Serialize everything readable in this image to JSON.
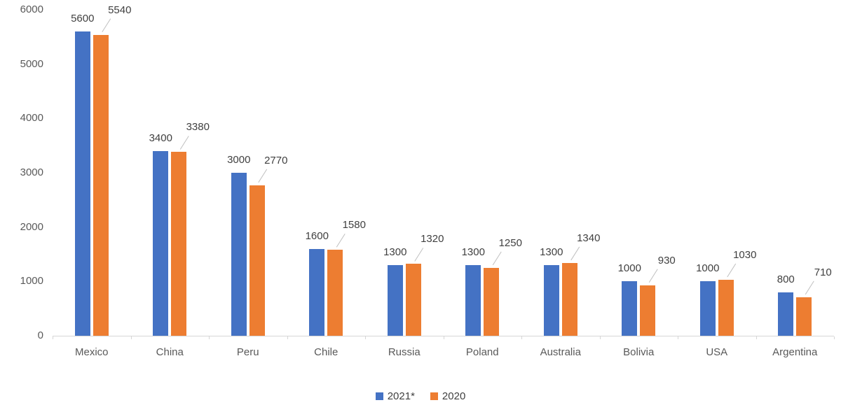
{
  "chart_data": {
    "type": "bar",
    "title": "",
    "xlabel": "",
    "ylabel": "",
    "categories": [
      "Mexico",
      "China",
      "Peru",
      "Chile",
      "Russia",
      "Poland",
      "Australia",
      "Bolivia",
      "USA",
      "Argentina"
    ],
    "series": [
      {
        "name": "2021*",
        "color": "#4472c4",
        "values": [
          5600,
          3400,
          3000,
          1600,
          1300,
          1300,
          1300,
          1000,
          1000,
          800
        ]
      },
      {
        "name": "2020",
        "color": "#ed7d31",
        "values": [
          5540,
          3380,
          2770,
          1580,
          1320,
          1250,
          1340,
          930,
          1030,
          710
        ]
      }
    ],
    "ylim": [
      0,
      6000
    ],
    "yticks": [
      0,
      1000,
      2000,
      3000,
      4000,
      5000,
      6000
    ],
    "grid": false,
    "legend_position": "bottom",
    "data_labels": true,
    "leader_line_color": "#bfbfbf",
    "axis_color": "#d6d6d6",
    "label_color": "#404040",
    "tick_label_color": "#595959"
  },
  "legend": {
    "items": [
      {
        "label": "2021*",
        "color": "#4472c4"
      },
      {
        "label": "2020",
        "color": "#ed7d31"
      }
    ]
  }
}
